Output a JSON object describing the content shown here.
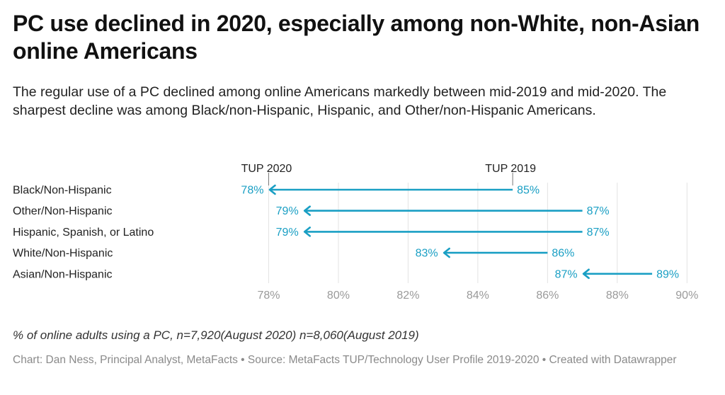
{
  "title": "PC use declined in 2020, especially among non-White, non-Asian online Americans",
  "subtitle": "The regular use of a PC declined among online Americans markedly between mid-2019 and mid-2020. The sharpest decline was among Black/non-Hispanic, Hispanic, and Other/non-Hispanic Americans.",
  "note": "% of online adults using a PC, n=7,920(August 2020) n=8,060(August 2019)",
  "credits": "Chart: Dan Ness, Principal Analyst, MetaFacts • Source: MetaFacts TUP/Technology User Profile 2019-2020 • Created with Datawrapper",
  "colors": {
    "arrow": "#1a9fc4",
    "grid": "#e3e3e3",
    "tick": "#9a9a9a"
  },
  "chart_data": {
    "type": "arrow",
    "categories": [
      "Black/Non-Hispanic",
      "Other/Non-Hispanic",
      "Hispanic, Spanish, or Latino",
      "White/Non-Hispanic",
      "Asian/Non-Hispanic"
    ],
    "series": [
      {
        "name": "TUP 2019",
        "values": [
          85,
          87,
          87,
          86,
          89
        ]
      },
      {
        "name": "TUP 2020",
        "values": [
          78,
          79,
          79,
          83,
          87
        ]
      }
    ],
    "value_labels": {
      "TUP 2019": [
        "85%",
        "87%",
        "87%",
        "86%",
        "89%"
      ],
      "TUP 2020": [
        "78%",
        "79%",
        "79%",
        "83%",
        "87%"
      ]
    },
    "series_labels": [
      "TUP 2020",
      "TUP 2019"
    ],
    "x_ticks": [
      78,
      80,
      82,
      84,
      86,
      88,
      90
    ],
    "x_tick_labels": [
      "78%",
      "80%",
      "82%",
      "84%",
      "86%",
      "88%",
      "90%"
    ],
    "xlim": [
      77.3,
      90.4
    ],
    "grid": true
  }
}
